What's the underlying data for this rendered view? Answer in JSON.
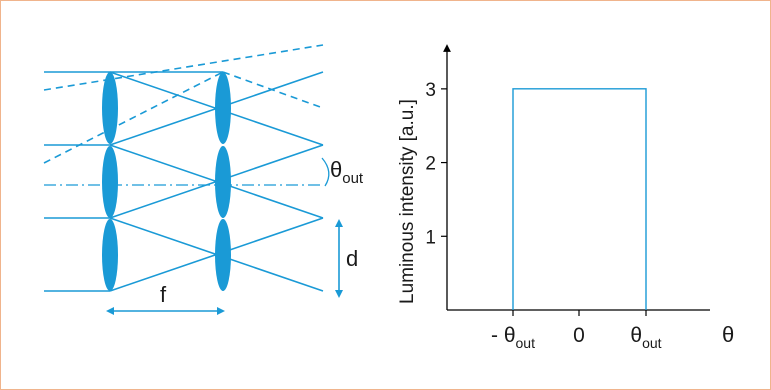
{
  "colors": {
    "optics": "#1a9ad6",
    "axes": "#000000",
    "text": "#1a1a1a",
    "border": "#f0b48c"
  },
  "optics_diagram": {
    "angle_label": "θ",
    "angle_subscript": "out",
    "pitch_label": "d",
    "focal_label": "f"
  },
  "chart_data": {
    "type": "line",
    "ylabel": "Luminous intensity [a.u.]",
    "xlabel": "θ",
    "yticks": [
      "1",
      "2",
      "3"
    ],
    "xticks": [
      {
        "prefix": "- ",
        "symbol": "θ",
        "subscript": "out"
      },
      {
        "prefix": "",
        "symbol": "0",
        "subscript": ""
      },
      {
        "prefix": "",
        "symbol": "θ",
        "subscript": "out"
      }
    ],
    "ylim": [
      0,
      3.5
    ],
    "series": [
      {
        "x": [
          "-θout",
          "-θout",
          "θout",
          "θout"
        ],
        "values": [
          0,
          3,
          3,
          0
        ]
      }
    ]
  }
}
